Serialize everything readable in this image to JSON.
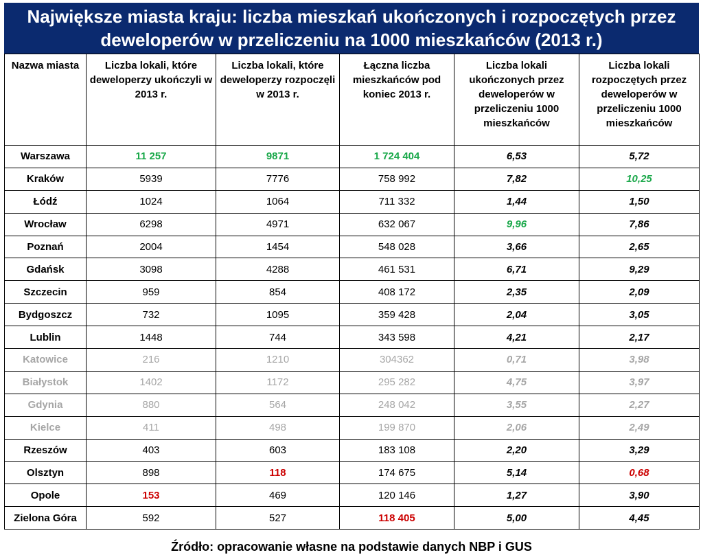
{
  "title": "Największe miasta kraju: liczba mieszkań ukończonych i rozpoczętych przez deweloperów w przeliczeniu na 1000 mieszkańców (2013 r.)",
  "source": "Źródło: opracowanie własne na podstawie danych NBP i GUS",
  "colors": {
    "header_bg": "#0b2a6f",
    "max": "#1aa84a",
    "min": "#cc0000"
  },
  "chart_data": {
    "type": "table",
    "columns": [
      "Nazwa miasta",
      "Liczba lokali, które deweloperzy ukończyli w 2013 r.",
      "Liczba lokali, które deweloperzy rozpoczęli w 2013 r.",
      "Łączna liczba mieszkańców pod koniec 2013 r.",
      "Liczba lokali ukończonych przez deweloperów w przeliczeniu 1000 mieszkańców",
      "Liczba lokali rozpoczętych przez deweloperów w przeliczeniu 1000 mieszkańców"
    ],
    "rows": [
      {
        "city": "Warszawa",
        "completed": "11 257",
        "started": "9871",
        "population": "1 724 404",
        "completed_per_1000": "6,53",
        "started_per_1000": "5,72"
      },
      {
        "city": "Kraków",
        "completed": "5939",
        "started": "7776",
        "population": "758 992",
        "completed_per_1000": "7,82",
        "started_per_1000": "10,25"
      },
      {
        "city": "Łódź",
        "completed": "1024",
        "started": "1064",
        "population": "711 332",
        "completed_per_1000": "1,44",
        "started_per_1000": "1,50"
      },
      {
        "city": "Wrocław",
        "completed": "6298",
        "started": "4971",
        "population": "632 067",
        "completed_per_1000": "9,96",
        "started_per_1000": "7,86"
      },
      {
        "city": "Poznań",
        "completed": "2004",
        "started": "1454",
        "population": "548 028",
        "completed_per_1000": "3,66",
        "started_per_1000": "2,65"
      },
      {
        "city": "Gdańsk",
        "completed": "3098",
        "started": "4288",
        "population": "461 531",
        "completed_per_1000": "6,71",
        "started_per_1000": "9,29"
      },
      {
        "city": "Szczecin",
        "completed": "959",
        "started": "854",
        "population": "408 172",
        "completed_per_1000": "2,35",
        "started_per_1000": "2,09"
      },
      {
        "city": "Bydgoszcz",
        "completed": "732",
        "started": "1095",
        "population": "359 428",
        "completed_per_1000": "2,04",
        "started_per_1000": "3,05"
      },
      {
        "city": "Lublin",
        "completed": "1448",
        "started": "744",
        "population": "343 598",
        "completed_per_1000": "4,21",
        "started_per_1000": "2,17"
      },
      {
        "city": "Katowice",
        "completed": "216",
        "started": "1210",
        "population": "304362",
        "completed_per_1000": "0,71",
        "started_per_1000": "3,98"
      },
      {
        "city": "Białystok",
        "completed": "1402",
        "started": "1172",
        "population": "295 282",
        "completed_per_1000": "4,75",
        "started_per_1000": "3,97"
      },
      {
        "city": "Gdynia",
        "completed": "880",
        "started": "564",
        "population": "248 042",
        "completed_per_1000": "3,55",
        "started_per_1000": "2,27"
      },
      {
        "city": "Kielce",
        "completed": "411",
        "started": "498",
        "population": "199 870",
        "completed_per_1000": "2,06",
        "started_per_1000": "2,49"
      },
      {
        "city": "Rzeszów",
        "completed": "403",
        "started": "603",
        "population": "183 108",
        "completed_per_1000": "2,20",
        "started_per_1000": "3,29"
      },
      {
        "city": "Olsztyn",
        "completed": "898",
        "started": "118",
        "population": "174 675",
        "completed_per_1000": "5,14",
        "started_per_1000": "0,68"
      },
      {
        "city": "Opole",
        "completed": "153",
        "started": "469",
        "population": "120 146",
        "completed_per_1000": "1,27",
        "started_per_1000": "3,90"
      },
      {
        "city": "Zielona Góra",
        "completed": "592",
        "started": "527",
        "population": "118 405",
        "completed_per_1000": "5,00",
        "started_per_1000": "4,45"
      }
    ],
    "highlights": {
      "max": [
        {
          "row": 0,
          "col": "completed"
        },
        {
          "row": 0,
          "col": "started"
        },
        {
          "row": 0,
          "col": "population"
        },
        {
          "row": 3,
          "col": "completed_per_1000"
        },
        {
          "row": 1,
          "col": "started_per_1000"
        }
      ],
      "min": [
        {
          "row": 15,
          "col": "completed"
        },
        {
          "row": 14,
          "col": "started"
        },
        {
          "row": 16,
          "col": "population"
        },
        {
          "row": 9,
          "col": "completed_per_1000"
        },
        {
          "row": 14,
          "col": "started_per_1000"
        }
      ]
    },
    "faded_rows": [
      9,
      10,
      11,
      12
    ]
  }
}
